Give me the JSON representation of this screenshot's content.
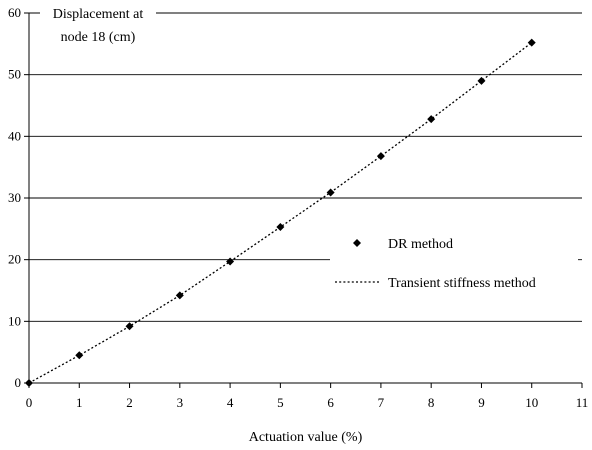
{
  "chart_data": {
    "type": "scatter",
    "xlabel": "Actuation value (%)",
    "ylabel_lines": [
      "Displacement at",
      "node 18 (cm)"
    ],
    "xlim": [
      0,
      11
    ],
    "ylim": [
      0,
      60
    ],
    "xticks": [
      0,
      1,
      2,
      3,
      4,
      5,
      6,
      7,
      8,
      9,
      10,
      11
    ],
    "yticks": [
      0,
      10,
      20,
      30,
      40,
      50,
      60
    ],
    "grid": "horizontal",
    "legend_position": "right",
    "series": [
      {
        "name": "DR method",
        "style": "diamond-markers",
        "color": "#000000",
        "x": [
          0,
          1,
          2,
          3,
          4,
          5,
          6,
          7,
          8,
          9,
          10
        ],
        "y": [
          0,
          4.5,
          9.2,
          14.2,
          19.7,
          25.3,
          30.9,
          36.8,
          42.8,
          49.0,
          55.2
        ]
      },
      {
        "name": "Transient stiffness method",
        "style": "dotted-line",
        "color": "#000000",
        "x": [
          0,
          1,
          2,
          3,
          4,
          5,
          6,
          7,
          8,
          9,
          10
        ],
        "y": [
          0,
          4.5,
          9.2,
          14.2,
          19.7,
          25.3,
          30.9,
          36.8,
          42.8,
          49.0,
          55.2
        ]
      }
    ]
  }
}
